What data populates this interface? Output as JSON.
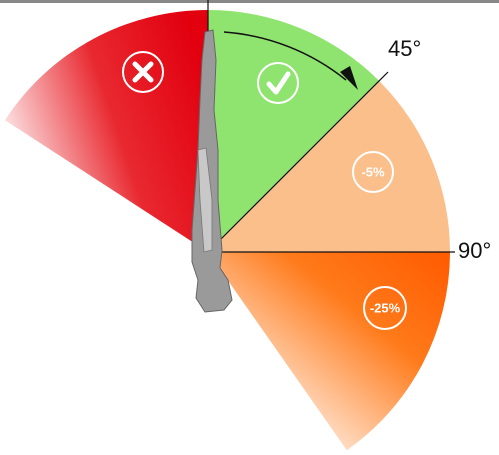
{
  "angle_labels": [
    "45°",
    "90°"
  ],
  "zone_labels": [
    "-5%",
    "-25%"
  ]
}
